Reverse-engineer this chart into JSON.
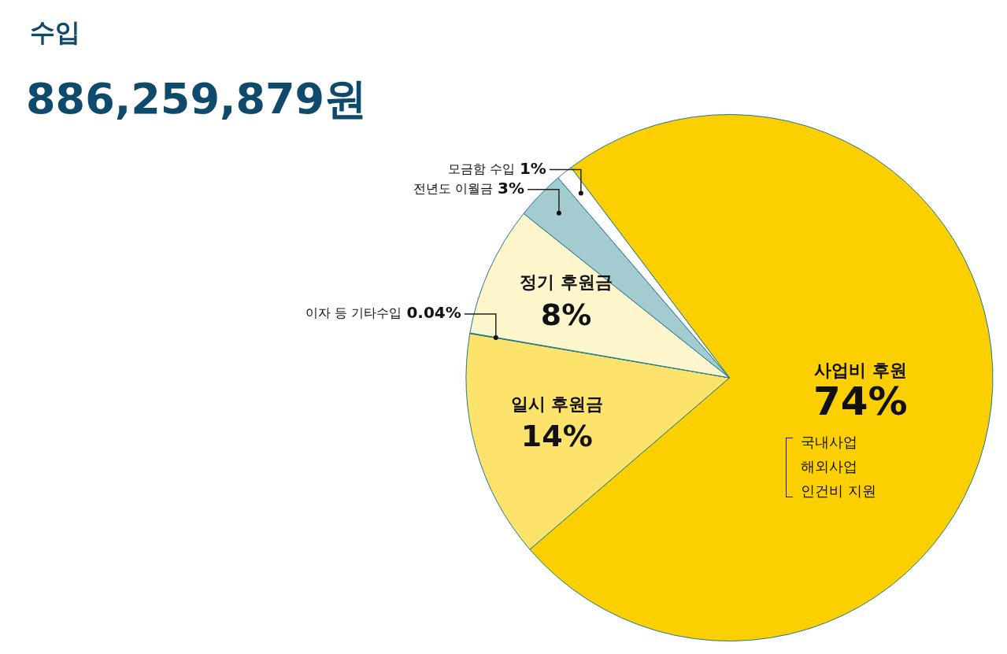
{
  "chart_data": {
    "type": "pie",
    "title": "수입",
    "subtitle": "886,259,879원",
    "categories": [
      "사업비 후원",
      "일시 후원금",
      "이자 등 기타수입",
      "정기 후원금",
      "전년도 이월금",
      "모금함 수입"
    ],
    "values": [
      74,
      14,
      0.04,
      8,
      3,
      1
    ],
    "value_labels": [
      "74%",
      "14%",
      "0.04%",
      "8%",
      "3%",
      "1%"
    ],
    "colors": [
      "#fcd000",
      "#fde36b",
      "#333333",
      "#fdf5cc",
      "#a3cbd0",
      "#ffffff"
    ],
    "annotations": [
      "국내사업",
      "해외사업",
      "인건비 지원"
    ],
    "legend": false
  }
}
